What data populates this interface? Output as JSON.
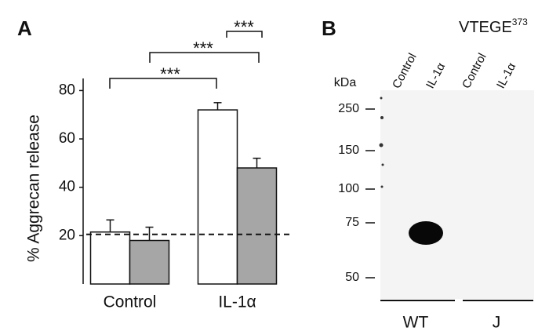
{
  "chart_data": {
    "type": "bar",
    "panel_label": "A",
    "y_label": "% Aggrecan release",
    "categories": [
      "Control",
      "IL-1α"
    ],
    "series": [
      {
        "color": "#ffffff",
        "values": [
          21.5,
          72
        ],
        "errors": [
          5,
          3
        ]
      },
      {
        "color": "#a6a6a6",
        "values": [
          18,
          48
        ],
        "errors": [
          5.5,
          4
        ]
      }
    ],
    "ylim": [
      0,
      85
    ],
    "yticks": [
      20,
      40,
      60,
      80
    ],
    "reference_line": 20.5,
    "significance": [
      "***",
      "***",
      "***"
    ]
  },
  "blot": {
    "panel_label": "B",
    "title": "VTEGE",
    "title_superscript": "373",
    "unit_label": "kDa",
    "markers": [
      "250",
      "150",
      "100",
      "75",
      "50"
    ],
    "lanes": [
      "Control",
      "IL-1α",
      "Control",
      "IL-1α"
    ],
    "groups": [
      "WT",
      "J"
    ]
  }
}
